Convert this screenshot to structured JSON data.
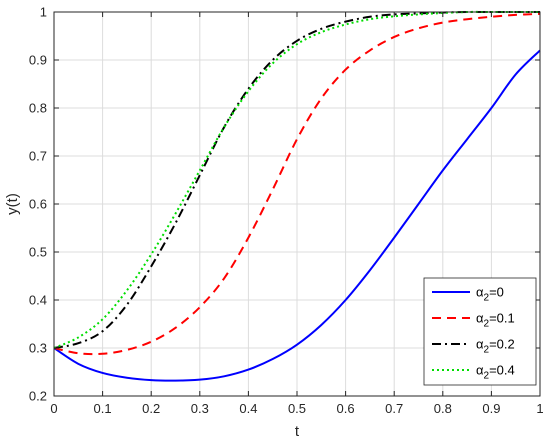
{
  "chart_data": {
    "type": "line",
    "title": "",
    "xlabel": "t",
    "ylabel": "y(t)",
    "xlim": [
      0,
      1
    ],
    "ylim": [
      0.2,
      1
    ],
    "xticks": [
      "0",
      "0.1",
      "0.2",
      "0.3",
      "0.4",
      "0.5",
      "0.6",
      "0.7",
      "0.8",
      "0.9",
      "1"
    ],
    "yticks": [
      "0.2",
      "0.3",
      "0.4",
      "0.5",
      "0.6",
      "0.7",
      "0.8",
      "0.9",
      "1"
    ],
    "grid": true,
    "legend_position": "bottom-right",
    "x": [
      0,
      0.05,
      0.1,
      0.15,
      0.2,
      0.25,
      0.3,
      0.35,
      0.4,
      0.45,
      0.5,
      0.55,
      0.6,
      0.65,
      0.7,
      0.75,
      0.8,
      0.85,
      0.9,
      0.95,
      1.0
    ],
    "series": [
      {
        "legend_base": "α",
        "legend_sub": "2",
        "legend_value": "=0",
        "color": "#0000ff",
        "style": "solid",
        "values": [
          0.3,
          0.267,
          0.248,
          0.238,
          0.233,
          0.232,
          0.234,
          0.241,
          0.255,
          0.277,
          0.307,
          0.348,
          0.4,
          0.462,
          0.53,
          0.6,
          0.67,
          0.735,
          0.8,
          0.87,
          0.92
        ]
      },
      {
        "legend_base": "α",
        "legend_sub": "2",
        "legend_value": "=0.1",
        "color": "#ff0000",
        "style": "dash",
        "values": [
          0.3,
          0.289,
          0.288,
          0.296,
          0.313,
          0.342,
          0.385,
          0.445,
          0.53,
          0.63,
          0.735,
          0.82,
          0.88,
          0.92,
          0.948,
          0.966,
          0.978,
          0.985,
          0.99,
          0.994,
          0.996
        ]
      },
      {
        "legend_base": "α",
        "legend_sub": "2",
        "legend_value": "=0.2",
        "color": "#000000",
        "style": "dashdot",
        "values": [
          0.3,
          0.31,
          0.335,
          0.39,
          0.47,
          0.56,
          0.66,
          0.76,
          0.84,
          0.9,
          0.94,
          0.965,
          0.98,
          0.99,
          0.995,
          0.997,
          0.999,
          1.0,
          1.0,
          1.0,
          1.0
        ]
      },
      {
        "legend_base": "α",
        "legend_sub": "2",
        "legend_value": "=0.4",
        "color": "#00dd00",
        "style": "dot",
        "values": [
          0.3,
          0.322,
          0.36,
          0.42,
          0.495,
          0.58,
          0.67,
          0.76,
          0.835,
          0.893,
          0.933,
          0.958,
          0.974,
          0.985,
          0.991,
          0.995,
          0.998,
          1.0,
          1.0,
          1.0,
          1.0
        ]
      }
    ]
  }
}
